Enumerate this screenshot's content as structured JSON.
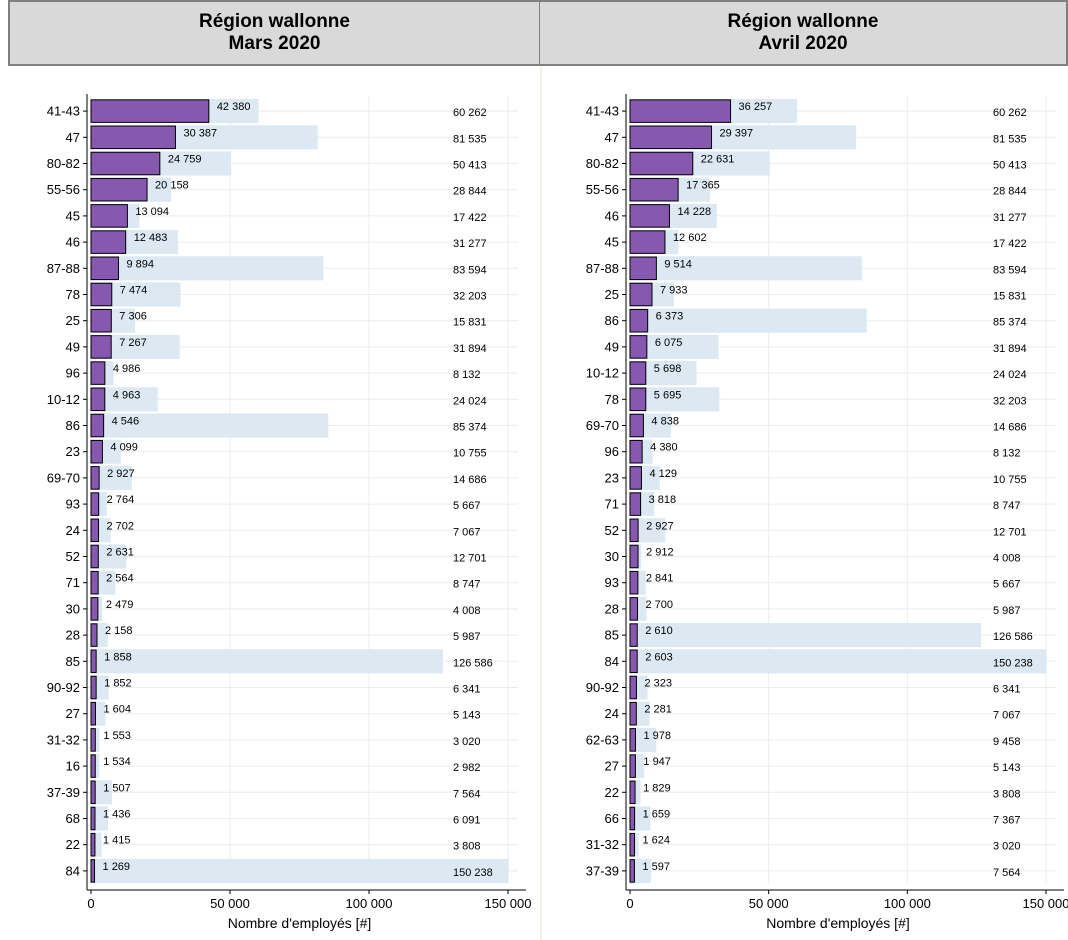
{
  "headers": [
    {
      "line1": "Région wallonne",
      "line2": "Mars 2020"
    },
    {
      "line1": "Région wallonne",
      "line2": "Avril 2020"
    }
  ],
  "colors": {
    "employed": "#dce9f2",
    "unemployed": "#8658b0",
    "grid": "#ececec",
    "border": "#7f7f7f"
  },
  "chart_data": [
    {
      "type": "bar",
      "orientation": "horizontal",
      "title": "Région wallonne Mars 2020",
      "xlabel": "Nombre d'employés [#]",
      "ylabel": "",
      "xlim": [
        0,
        150000
      ],
      "xticks": [
        0,
        50000,
        100000,
        150000
      ],
      "xtick_labels": [
        "0",
        "50 000",
        "100 000",
        "150 000"
      ],
      "categories": [
        "41-43",
        "47",
        "80-82",
        "55-56",
        "45",
        "46",
        "87-88",
        "78",
        "25",
        "49",
        "96",
        "10-12",
        "86",
        "23",
        "69-70",
        "93",
        "24",
        "52",
        "71",
        "30",
        "28",
        "85",
        "90-92",
        "27",
        "31-32",
        "16",
        "37-39",
        "68",
        "22",
        "84"
      ],
      "series": [
        {
          "values": [
            60262,
            81535,
            50413,
            28844,
            17422,
            31277,
            83594,
            32203,
            15831,
            31894,
            8132,
            24024,
            85374,
            10755,
            14686,
            5667,
            7067,
            12701,
            8747,
            4008,
            5987,
            126586,
            6341,
            5143,
            3020,
            2982,
            7564,
            6091,
            3808,
            150238
          ],
          "labels": [
            "60 262",
            "81 535",
            "50 413",
            "28 844",
            "17 422",
            "31 277",
            "83 594",
            "32 203",
            "15 831",
            "31 894",
            "8 132",
            "24 024",
            "85 374",
            "10 755",
            "14 686",
            "5 667",
            "7 067",
            "12 701",
            "8 747",
            "4 008",
            "5 987",
            "126 586",
            "6 341",
            "5 143",
            "3 020",
            "2 982",
            "7 564",
            "6 091",
            "3 808",
            "150 238"
          ]
        },
        {
          "values": [
            42380,
            30387,
            24759,
            20158,
            13094,
            12483,
            9894,
            7474,
            7306,
            7267,
            4986,
            4963,
            4546,
            4099,
            2927,
            2764,
            2702,
            2631,
            2564,
            2479,
            2158,
            1858,
            1852,
            1604,
            1553,
            1534,
            1507,
            1436,
            1415,
            1269
          ],
          "labels": [
            "42 380",
            "30 387",
            "24 759",
            "20 158",
            "13 094",
            "12 483",
            "9 894",
            "7 474",
            "7 306",
            "7 267",
            "4 986",
            "4 963",
            "4 546",
            "4 099",
            "2 927",
            "2 764",
            "2 702",
            "2 631",
            "2 564",
            "2 479",
            "2 158",
            "1 858",
            "1 852",
            "1 604",
            "1 553",
            "1 534",
            "1 507",
            "1 436",
            "1 415",
            "1 269"
          ]
        }
      ]
    },
    {
      "type": "bar",
      "orientation": "horizontal",
      "title": "Région wallonne Avril 2020",
      "xlabel": "Nombre d'employés [#]",
      "ylabel": "",
      "xlim": [
        0,
        150000
      ],
      "xticks": [
        0,
        50000,
        100000,
        150000
      ],
      "xtick_labels": [
        "0",
        "50 000",
        "100 000",
        "150 000"
      ],
      "categories": [
        "41-43",
        "47",
        "80-82",
        "55-56",
        "46",
        "45",
        "87-88",
        "25",
        "86",
        "49",
        "10-12",
        "78",
        "69-70",
        "96",
        "23",
        "71",
        "52",
        "30",
        "93",
        "28",
        "85",
        "84",
        "90-92",
        "24",
        "62-63",
        "27",
        "22",
        "66",
        "31-32",
        "37-39"
      ],
      "series": [
        {
          "values": [
            60262,
            81535,
            50413,
            28844,
            31277,
            17422,
            83594,
            15831,
            85374,
            31894,
            24024,
            32203,
            14686,
            8132,
            10755,
            8747,
            12701,
            4008,
            5667,
            5987,
            126586,
            150238,
            6341,
            7067,
            9458,
            5143,
            3808,
            7367,
            3020,
            7564
          ],
          "labels": [
            "60 262",
            "81 535",
            "50 413",
            "28 844",
            "31 277",
            "17 422",
            "83 594",
            "15 831",
            "85 374",
            "31 894",
            "24 024",
            "32 203",
            "14 686",
            "8 132",
            "10 755",
            "8 747",
            "12 701",
            "4 008",
            "5 667",
            "5 987",
            "126 586",
            "150 238",
            "6 341",
            "7 067",
            "9 458",
            "5 143",
            "3 808",
            "7 367",
            "3 020",
            "7 564"
          ]
        },
        {
          "values": [
            36257,
            29397,
            22631,
            17365,
            14228,
            12602,
            9514,
            7933,
            6373,
            6075,
            5698,
            5695,
            4838,
            4380,
            4129,
            3818,
            2927,
            2912,
            2841,
            2700,
            2610,
            2603,
            2323,
            2281,
            1978,
            1947,
            1829,
            1659,
            1624,
            1597
          ],
          "labels": [
            "36 257",
            "29 397",
            "22 631",
            "17 365",
            "14 228",
            "12 602",
            "9 514",
            "7 933",
            "6 373",
            "6 075",
            "5 698",
            "5 695",
            "4 838",
            "4 380",
            "4 129",
            "3 818",
            "2 927",
            "2 912",
            "2 841",
            "2 700",
            "2 610",
            "2 603",
            "2 323",
            "2 281",
            "1 978",
            "1 947",
            "1 829",
            "1 659",
            "1 624",
            "1 597"
          ]
        }
      ]
    }
  ]
}
